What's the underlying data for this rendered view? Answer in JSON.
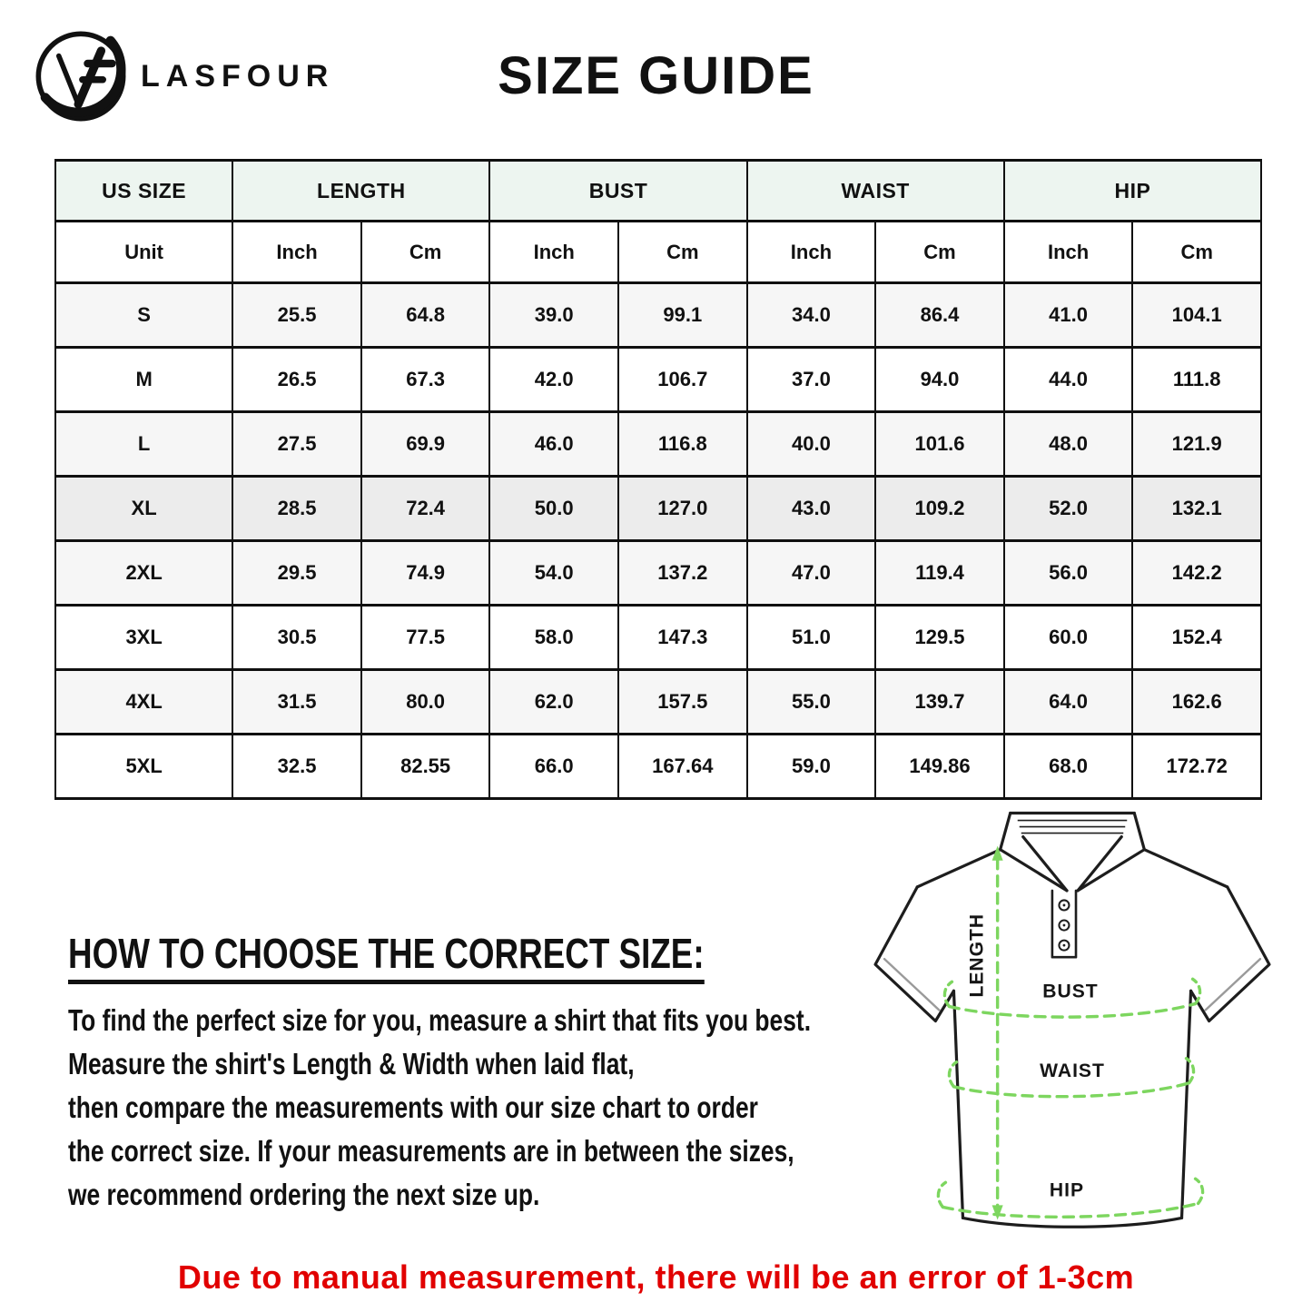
{
  "brand": {
    "name": "LASFOUR",
    "logo_icon": "lasfour-logo"
  },
  "page_title": "SIZE GUIDE",
  "size_table": {
    "columns": [
      "US SIZE",
      "LENGTH",
      "BUST",
      "WAIST",
      "HIP"
    ],
    "unit_row": [
      "Unit",
      "Inch",
      "Cm",
      "Inch",
      "Cm",
      "Inch",
      "Cm",
      "Inch",
      "Cm"
    ],
    "rows": [
      {
        "size": "S",
        "values": [
          "25.5",
          "64.8",
          "39.0",
          "99.1",
          "34.0",
          "86.4",
          "41.0",
          "104.1"
        ]
      },
      {
        "size": "M",
        "values": [
          "26.5",
          "67.3",
          "42.0",
          "106.7",
          "37.0",
          "94.0",
          "44.0",
          "111.8"
        ]
      },
      {
        "size": "L",
        "values": [
          "27.5",
          "69.9",
          "46.0",
          "116.8",
          "40.0",
          "101.6",
          "48.0",
          "121.9"
        ]
      },
      {
        "size": "XL",
        "values": [
          "28.5",
          "72.4",
          "50.0",
          "127.0",
          "43.0",
          "109.2",
          "52.0",
          "132.1"
        ]
      },
      {
        "size": "2XL",
        "values": [
          "29.5",
          "74.9",
          "54.0",
          "137.2",
          "47.0",
          "119.4",
          "56.0",
          "142.2"
        ]
      },
      {
        "size": "3XL",
        "values": [
          "30.5",
          "77.5",
          "58.0",
          "147.3",
          "51.0",
          "129.5",
          "60.0",
          "152.4"
        ]
      },
      {
        "size": "4XL",
        "values": [
          "31.5",
          "80.0",
          "62.0",
          "157.5",
          "55.0",
          "139.7",
          "64.0",
          "162.6"
        ]
      },
      {
        "size": "5XL",
        "values": [
          "32.5",
          "82.55",
          "66.0",
          "167.64",
          "59.0",
          "149.86",
          "68.0",
          "172.72"
        ]
      }
    ]
  },
  "how_to": {
    "heading": "HOW TO CHOOSE THE CORRECT SIZE:",
    "lines": [
      "To find the perfect size for you, measure a shirt that fits you best.",
      "Measure the shirt's Length & Width when laid flat,",
      "then compare the measurements with our size chart to order",
      "the correct size. If your measurements are in between the sizes,",
      "we recommend ordering the next size up."
    ]
  },
  "diagram": {
    "labels": {
      "length": "LENGTH",
      "bust": "BUST",
      "waist": "WAIST",
      "hip": "HIP"
    }
  },
  "disclaimer": "Due to manual measurement, there will be an error of 1-3cm",
  "colors": {
    "accent_green": "#7dd65f",
    "disclaimer_red": "#e10000",
    "header_tint": "#edf5f0"
  }
}
